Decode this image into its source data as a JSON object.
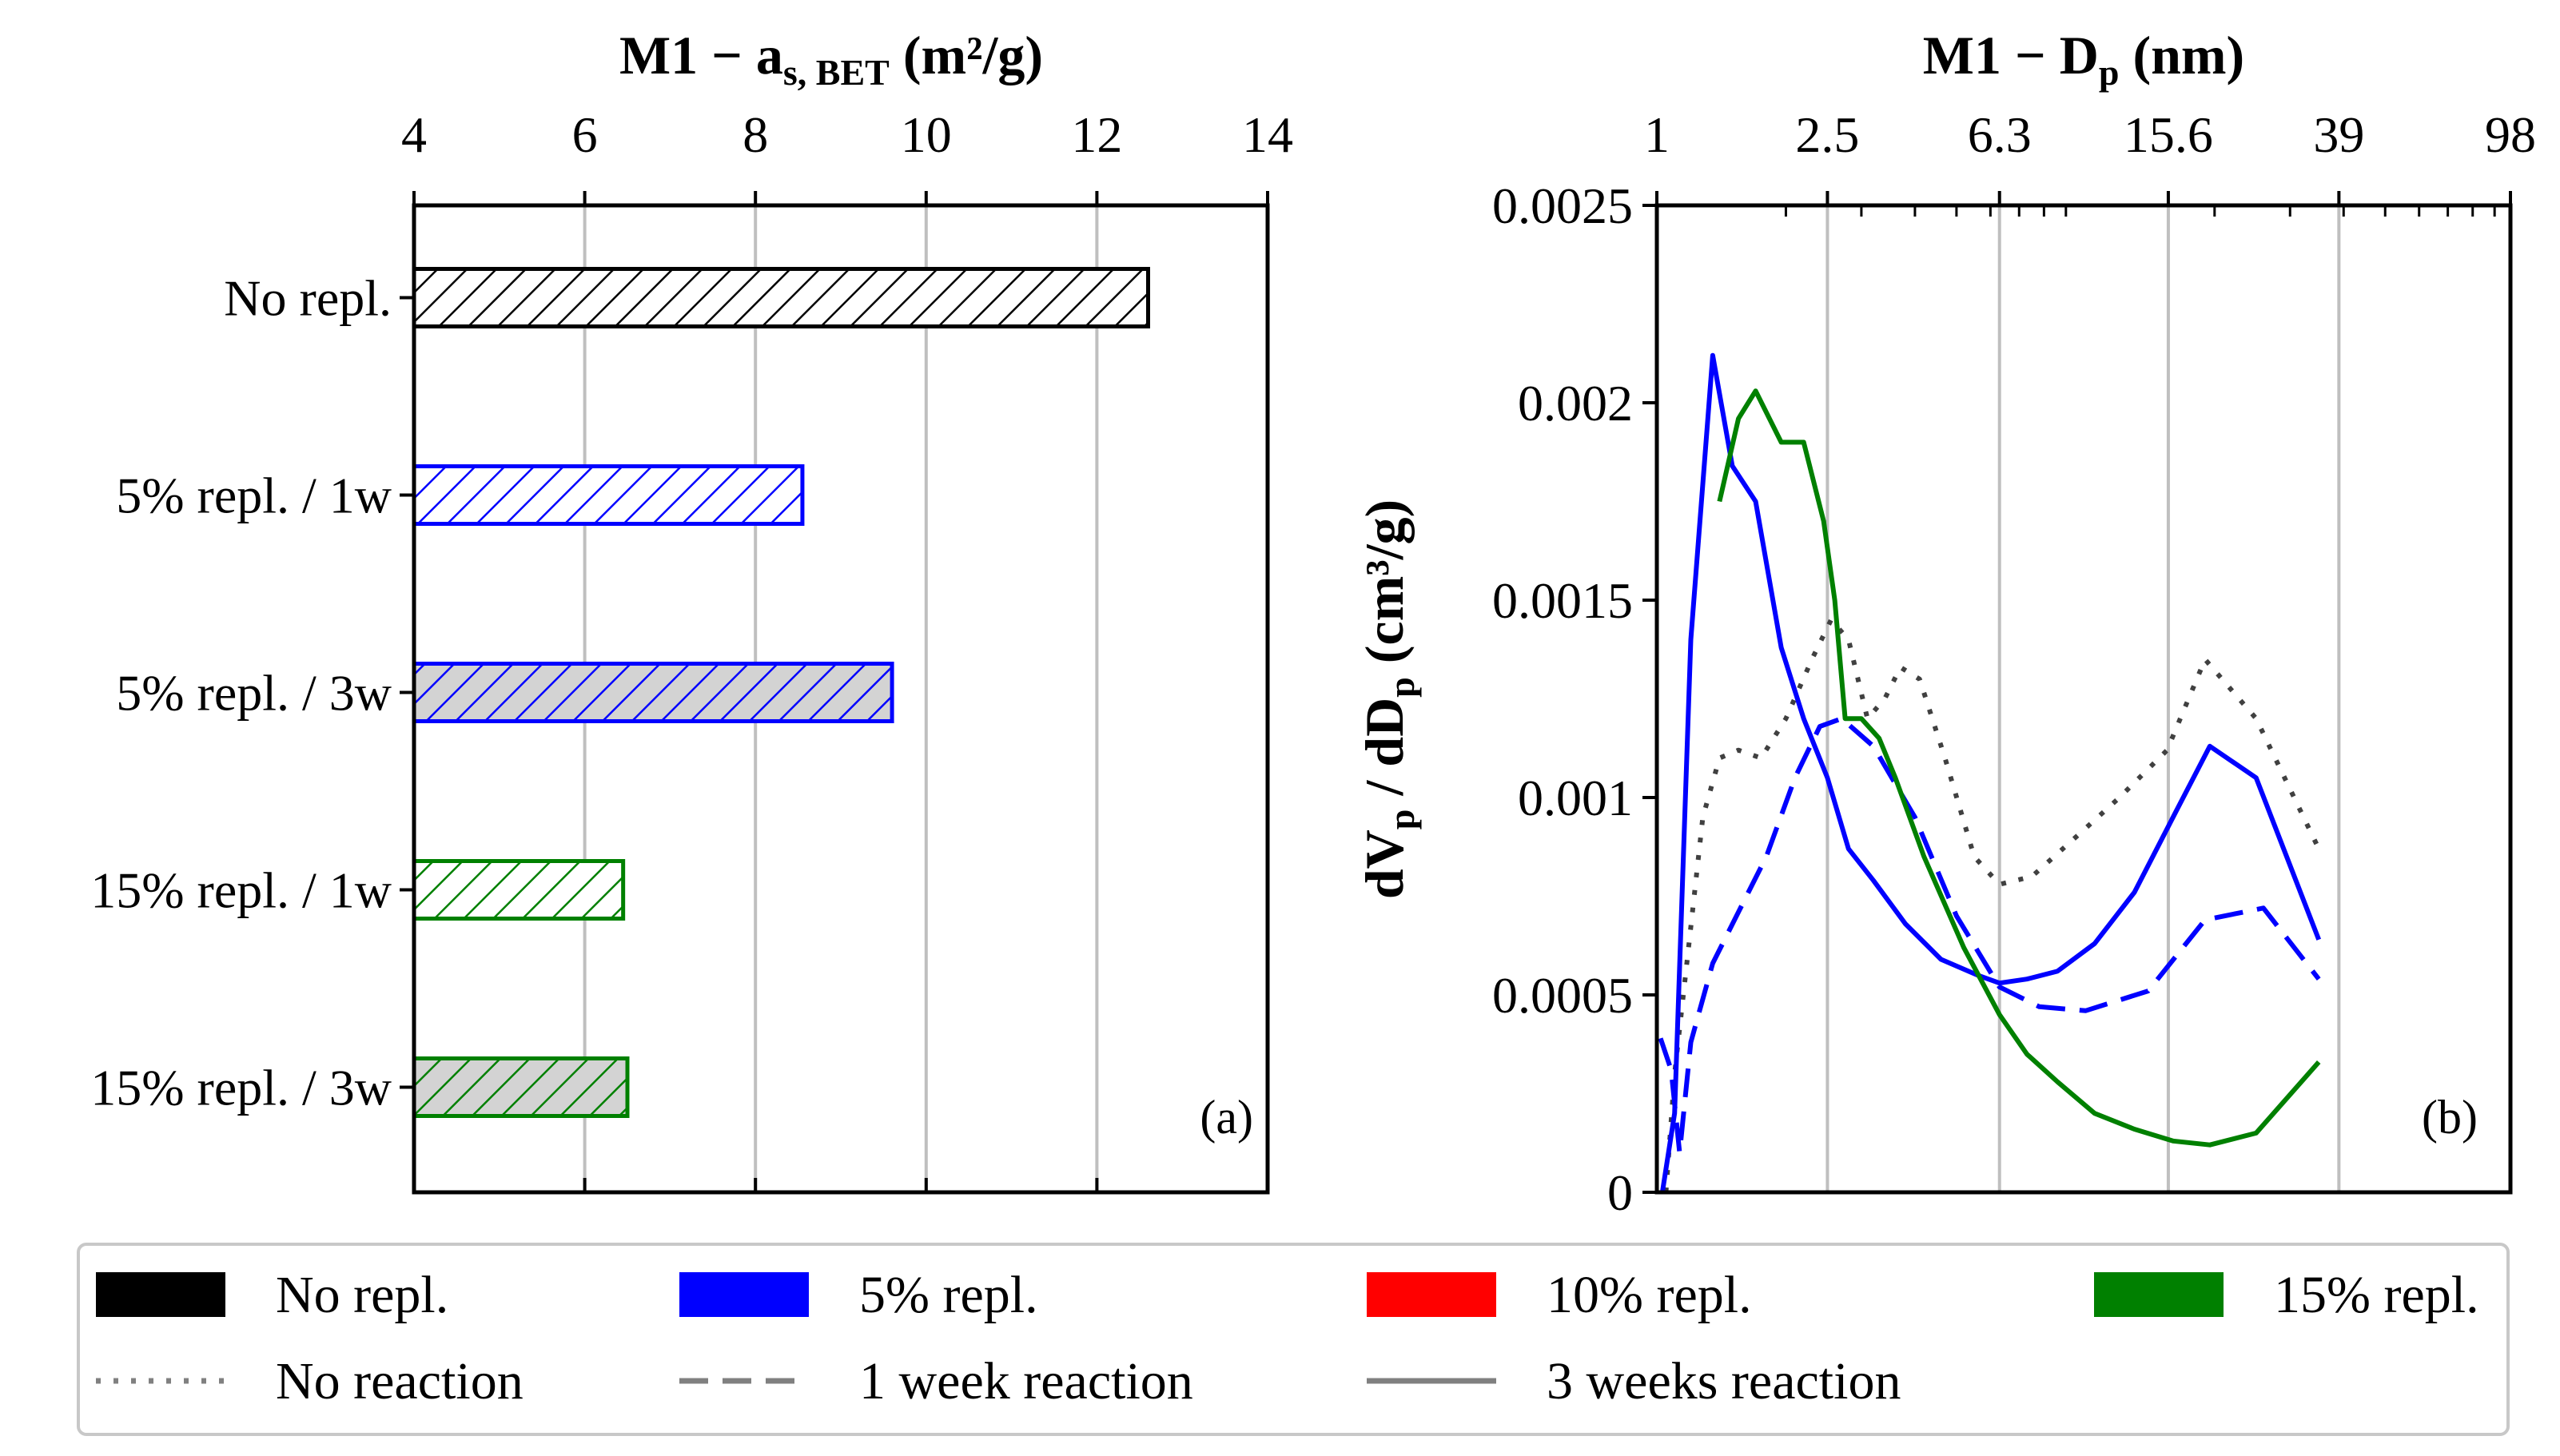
{
  "chart_data": [
    {
      "type": "bar",
      "orientation": "horizontal",
      "title": "M1 − a",
      "title_sub": "s, BET",
      "title_unit": " (m²/g)",
      "xlim": [
        4,
        14
      ],
      "xticks": [
        4,
        6,
        8,
        10,
        12,
        14
      ],
      "grid": "vertical",
      "panel_label": "(a)",
      "categories": [
        "No repl.",
        "5% repl. / 1w",
        "5% repl. / 3w",
        "15% repl. / 1w",
        "15% repl. / 3w"
      ],
      "values": [
        12.6,
        8.55,
        9.6,
        6.45,
        6.5
      ],
      "colors": [
        "#000000",
        "#0000ff",
        "#0000ff",
        "#008000",
        "#008000"
      ],
      "fills": [
        "#ffffff",
        "#ffffff",
        "#d3d3d3",
        "#ffffff",
        "#d3d3d3"
      ],
      "hatch": "///"
    },
    {
      "type": "line",
      "title": "M1 − D",
      "title_sub": "p",
      "title_unit": " (nm)",
      "xscale": "log",
      "xlim": [
        1,
        98
      ],
      "xticks": [
        1,
        2.5,
        6.3,
        15.6,
        39,
        98
      ],
      "xtick_labels": [
        "1",
        "2.5",
        "6.3",
        "15.6",
        "39",
        "98"
      ],
      "ylabel": "dV",
      "ylabel_sub": "p",
      "ylabel_mid": " / dD",
      "ylabel_sub2": "p",
      "ylabel_unit": " (cm³/g)",
      "ylim": [
        0,
        0.0025
      ],
      "yticks": [
        0,
        0.0005,
        0.001,
        0.0015,
        0.002,
        0.0025
      ],
      "ytick_labels": [
        "0",
        "0.0005",
        "0.001",
        "0.0015",
        "0.002",
        "0.0025"
      ],
      "grid": "vertical",
      "panel_label": "(b)",
      "series": [
        {
          "group": "No repl.",
          "reaction": "No reaction",
          "color": "#404040",
          "dash": "dotted",
          "x": [
            1.05,
            1.1,
            1.18,
            1.28,
            1.4,
            1.55,
            1.75,
            2.0,
            2.3,
            2.55,
            2.8,
            3.1,
            3.4,
            3.7,
            4.1,
            4.7,
            5.5,
            6.3,
            7.5,
            9.5,
            12,
            15.5,
            19,
            25,
            35
          ],
          "y": [
            0.0,
            0.0003,
            0.0006,
            0.00095,
            0.0011,
            0.00112,
            0.0011,
            0.0012,
            0.00135,
            0.00145,
            0.0014,
            0.0012,
            0.00125,
            0.00133,
            0.0013,
            0.0011,
            0.00085,
            0.00078,
            0.0008,
            0.0009,
            0.001,
            0.00112,
            0.00135,
            0.0012,
            0.00087
          ]
        },
        {
          "group": "5% repl.",
          "reaction": "1 week reaction",
          "color": "#0000ff",
          "dash": "dashed",
          "x": [
            1.02,
            1.08,
            1.13,
            1.2,
            1.35,
            1.55,
            1.8,
            2.1,
            2.4,
            2.7,
            3.2,
            4.0,
            5.0,
            6.3,
            7.8,
            10,
            14,
            19,
            26,
            35
          ],
          "y": [
            0.00039,
            0.00031,
            0.0001,
            0.00038,
            0.00058,
            0.00071,
            0.00085,
            0.00105,
            0.00118,
            0.0012,
            0.00113,
            0.00095,
            0.0007,
            0.00052,
            0.00047,
            0.00046,
            0.00051,
            0.00069,
            0.00072,
            0.00054
          ]
        },
        {
          "group": "5% repl.",
          "reaction": "3 weeks reaction",
          "color": "#0000ff",
          "dash": "solid",
          "x": [
            1.03,
            1.1,
            1.2,
            1.35,
            1.5,
            1.7,
            1.95,
            2.2,
            2.5,
            2.8,
            3.2,
            3.8,
            4.6,
            5.6,
            6.3,
            7.3,
            8.6,
            10.5,
            13,
            16,
            19.5,
            25,
            35
          ],
          "y": [
            0.0,
            0.0002,
            0.0014,
            0.00212,
            0.00184,
            0.00175,
            0.00138,
            0.0012,
            0.00105,
            0.00087,
            0.00079,
            0.00068,
            0.00059,
            0.00055,
            0.00053,
            0.00054,
            0.00056,
            0.00063,
            0.00076,
            0.00095,
            0.00113,
            0.00105,
            0.00064
          ]
        },
        {
          "group": "15% repl.",
          "reaction": "3 weeks reaction",
          "color": "#008000",
          "dash": "solid",
          "x": [
            1.4,
            1.55,
            1.7,
            1.95,
            2.2,
            2.45,
            2.6,
            2.75,
            3.0,
            3.3,
            3.6,
            4.2,
            5.2,
            6.3,
            7.3,
            8.6,
            10.5,
            13,
            16,
            19.5,
            25,
            35
          ],
          "y": [
            0.00175,
            0.00196,
            0.00203,
            0.0019,
            0.0019,
            0.0017,
            0.0015,
            0.0012,
            0.0012,
            0.00115,
            0.00105,
            0.00085,
            0.00062,
            0.00045,
            0.00035,
            0.00028,
            0.0002,
            0.00016,
            0.00013,
            0.00012,
            0.00015,
            0.00033
          ]
        }
      ]
    }
  ],
  "legend": {
    "items": [
      {
        "label": "No repl.",
        "kind": "patch",
        "color": "#000000"
      },
      {
        "label": "5% repl.",
        "kind": "patch",
        "color": "#0000ff"
      },
      {
        "label": "10% repl.",
        "kind": "patch",
        "color": "#ff0000"
      },
      {
        "label": "15% repl.",
        "kind": "patch",
        "color": "#008000"
      },
      {
        "label": "No reaction",
        "kind": "line",
        "dash": "dotted",
        "color": "#808080"
      },
      {
        "label": "1 week reaction",
        "kind": "line",
        "dash": "dashed",
        "color": "#808080"
      },
      {
        "label": "3 weeks reaction",
        "kind": "line",
        "dash": "solid",
        "color": "#808080"
      }
    ]
  }
}
